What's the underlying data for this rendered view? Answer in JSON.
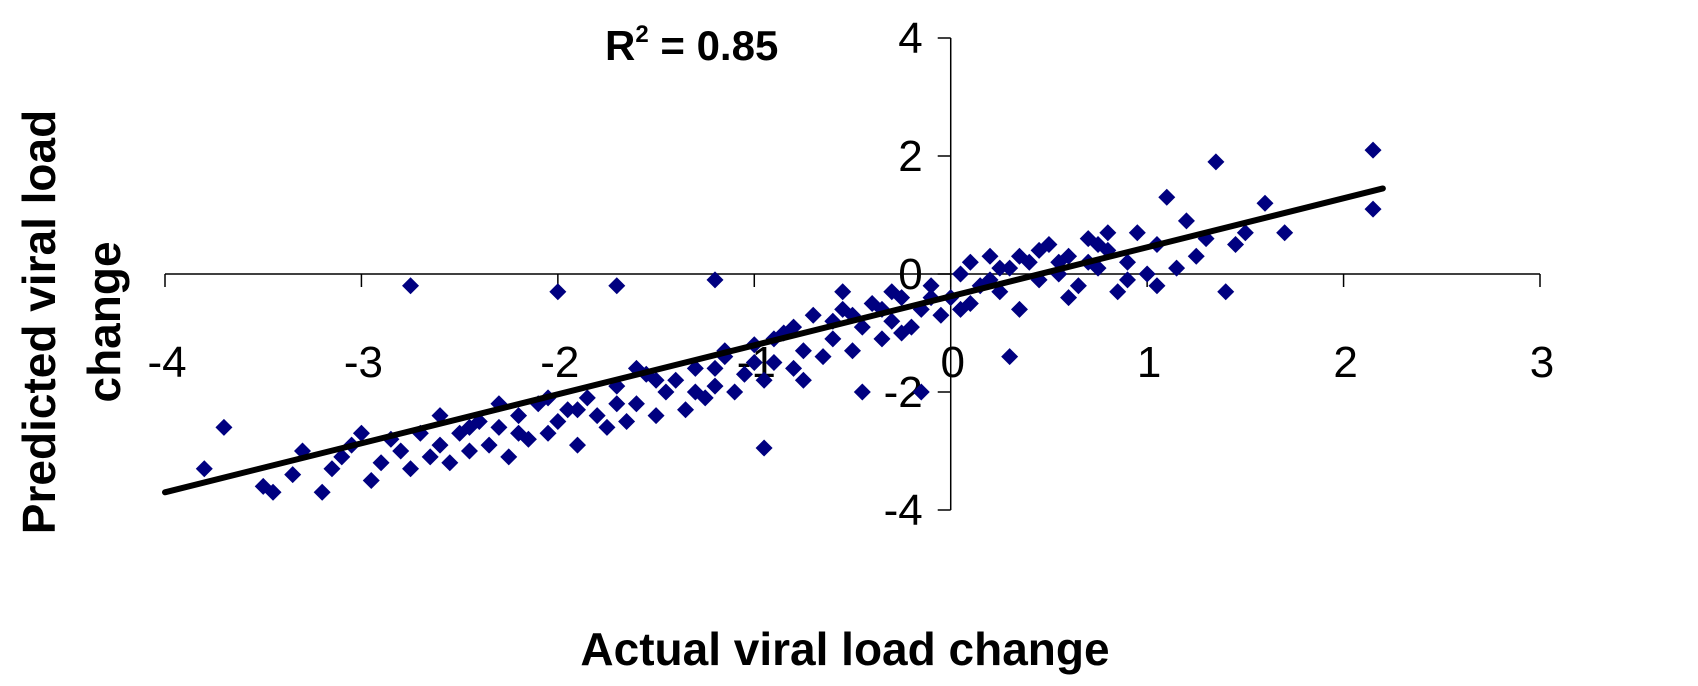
{
  "chart_data": {
    "type": "scatter",
    "annotation": {
      "prefix": "R",
      "superscript": "2",
      "suffix": " = 0.85"
    },
    "xlabel": "Actual viral load change",
    "ylabel_lines": [
      "Predicted viral load",
      "change"
    ],
    "xlim": [
      -4,
      3
    ],
    "ylim": [
      -4,
      4
    ],
    "xticks": [
      "-4",
      "-3",
      "-2",
      "-1",
      "0",
      "1",
      "2",
      "3"
    ],
    "yticks": [
      "4",
      "2",
      "0",
      "-2",
      "-4"
    ],
    "grid": false,
    "legend": "none",
    "marker_color": "#000080",
    "trendline_color": "#000000",
    "trendline": {
      "x": [
        -4,
        2.2
      ],
      "y": [
        -3.7,
        1.45
      ]
    },
    "points": [
      [
        -3.8,
        -3.3
      ],
      [
        -3.7,
        -2.6
      ],
      [
        -3.5,
        -3.6
      ],
      [
        -3.45,
        -3.7
      ],
      [
        -3.35,
        -3.4
      ],
      [
        -3.2,
        -3.7
      ],
      [
        -3.15,
        -3.3
      ],
      [
        -3.1,
        -3.1
      ],
      [
        -3.05,
        -2.9
      ],
      [
        -2.95,
        -3.5
      ],
      [
        -2.9,
        -3.2
      ],
      [
        -2.85,
        -2.8
      ],
      [
        -2.8,
        -3.0
      ],
      [
        -2.75,
        -3.3
      ],
      [
        -2.7,
        -2.7
      ],
      [
        -2.65,
        -3.1
      ],
      [
        -2.6,
        -2.9
      ],
      [
        -2.55,
        -3.2
      ],
      [
        -2.5,
        -2.7
      ],
      [
        -2.45,
        -3.0
      ],
      [
        -2.4,
        -2.5
      ],
      [
        -2.35,
        -2.9
      ],
      [
        -2.3,
        -2.6
      ],
      [
        -2.25,
        -3.1
      ],
      [
        -2.2,
        -2.4
      ],
      [
        -2.15,
        -2.8
      ],
      [
        -2.1,
        -2.2
      ],
      [
        -2.05,
        -2.7
      ],
      [
        -2.0,
        -2.5
      ],
      [
        -1.95,
        -2.3
      ],
      [
        -1.9,
        -2.9
      ],
      [
        -1.85,
        -2.1
      ],
      [
        -1.8,
        -2.4
      ],
      [
        -1.75,
        -2.6
      ],
      [
        -1.7,
        -1.9
      ],
      [
        -1.65,
        -2.5
      ],
      [
        -1.6,
        -2.2
      ],
      [
        -1.55,
        -1.7
      ],
      [
        -1.5,
        -2.4
      ],
      [
        -1.45,
        -2.0
      ],
      [
        -1.4,
        -1.8
      ],
      [
        -1.35,
        -2.3
      ],
      [
        -1.3,
        -1.6
      ],
      [
        -1.25,
        -2.1
      ],
      [
        -1.2,
        -1.9
      ],
      [
        -1.15,
        -1.4
      ],
      [
        -1.1,
        -2.0
      ],
      [
        -1.05,
        -1.7
      ],
      [
        -1.0,
        -1.2
      ],
      [
        -0.95,
        -1.8
      ],
      [
        -0.9,
        -1.5
      ],
      [
        -0.85,
        -1.0
      ],
      [
        -0.8,
        -1.6
      ],
      [
        -0.75,
        -1.3
      ],
      [
        -0.7,
        -0.7
      ],
      [
        -0.65,
        -1.4
      ],
      [
        -0.6,
        -1.1
      ],
      [
        -0.55,
        -0.6
      ],
      [
        -0.5,
        -1.3
      ],
      [
        -0.45,
        -0.9
      ],
      [
        -0.4,
        -0.5
      ],
      [
        -0.35,
        -1.1
      ],
      [
        -0.3,
        -0.8
      ],
      [
        -0.25,
        -0.4
      ],
      [
        -0.2,
        -0.9
      ],
      [
        -0.15,
        -0.6
      ],
      [
        -0.1,
        -0.2
      ],
      [
        -0.05,
        -0.7
      ],
      [
        0.0,
        -0.4
      ],
      [
        0.05,
        0.0
      ],
      [
        0.1,
        -0.5
      ],
      [
        0.15,
        -0.2
      ],
      [
        0.2,
        0.3
      ],
      [
        0.25,
        -0.3
      ],
      [
        0.3,
        0.1
      ],
      [
        0.35,
        -0.6
      ],
      [
        0.4,
        0.2
      ],
      [
        0.45,
        -0.1
      ],
      [
        0.5,
        0.5
      ],
      [
        0.55,
        0.0
      ],
      [
        0.6,
        0.3
      ],
      [
        0.65,
        -0.2
      ],
      [
        0.7,
        0.6
      ],
      [
        0.75,
        0.1
      ],
      [
        0.8,
        0.4
      ],
      [
        0.85,
        -0.3
      ],
      [
        0.9,
        0.2
      ],
      [
        0.95,
        0.7
      ],
      [
        1.0,
        0.0
      ],
      [
        1.05,
        0.5
      ],
      [
        1.1,
        1.3
      ],
      [
        1.15,
        0.1
      ],
      [
        1.2,
        0.9
      ],
      [
        1.3,
        0.6
      ],
      [
        1.35,
        1.9
      ],
      [
        1.4,
        -0.3
      ],
      [
        1.5,
        0.7
      ],
      [
        1.6,
        1.2
      ],
      [
        1.7,
        0.7
      ],
      [
        2.15,
        2.1
      ],
      [
        2.15,
        1.1
      ],
      [
        -2.75,
        -0.2
      ],
      [
        -2.0,
        -0.3
      ],
      [
        -1.7,
        -0.2
      ],
      [
        -1.2,
        -0.1
      ],
      [
        -0.95,
        -2.95
      ],
      [
        -0.45,
        -2.0
      ],
      [
        -0.15,
        -2.0
      ],
      [
        0.3,
        -1.4
      ],
      [
        -3.3,
        -3.0
      ],
      [
        -3.0,
        -2.7
      ],
      [
        -2.6,
        -2.4
      ],
      [
        -2.3,
        -2.2
      ],
      [
        -2.2,
        -2.7
      ],
      [
        -1.9,
        -2.3
      ],
      [
        -1.7,
        -2.2
      ],
      [
        -1.5,
        -1.8
      ],
      [
        -1.3,
        -2.0
      ],
      [
        -1.2,
        -1.6
      ],
      [
        -1.0,
        -1.5
      ],
      [
        -0.9,
        -1.1
      ],
      [
        -0.75,
        -1.8
      ],
      [
        -0.6,
        -0.8
      ],
      [
        -0.5,
        -0.7
      ],
      [
        -0.35,
        -0.6
      ],
      [
        -0.25,
        -1.0
      ],
      [
        -0.1,
        -0.4
      ],
      [
        0.05,
        -0.6
      ],
      [
        0.2,
        -0.1
      ],
      [
        0.35,
        0.3
      ],
      [
        0.45,
        0.4
      ],
      [
        0.6,
        -0.4
      ],
      [
        0.7,
        0.2
      ],
      [
        0.8,
        0.7
      ],
      [
        0.9,
        -0.1
      ],
      [
        1.05,
        -0.2
      ],
      [
        1.25,
        0.3
      ],
      [
        1.45,
        0.5
      ],
      [
        -2.45,
        -2.6
      ],
      [
        -2.05,
        -2.1
      ],
      [
        -1.6,
        -1.6
      ],
      [
        -1.15,
        -1.3
      ],
      [
        -0.8,
        -0.9
      ],
      [
        -0.55,
        -0.3
      ],
      [
        -0.3,
        -0.3
      ],
      [
        0.1,
        0.2
      ],
      [
        0.25,
        0.1
      ],
      [
        0.55,
        0.2
      ],
      [
        0.75,
        0.5
      ]
    ]
  }
}
